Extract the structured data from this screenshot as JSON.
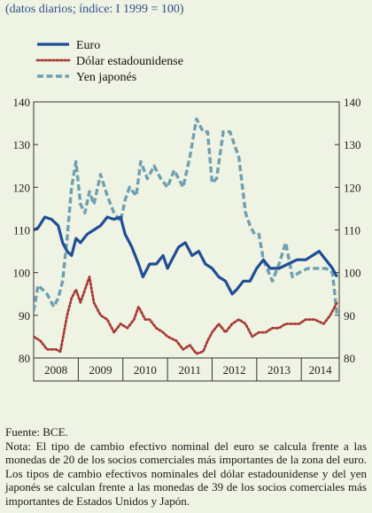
{
  "subtitle": "(datos diarios; índice: I 1999 = 100)",
  "footer": {
    "source": "Fuente: BCE.",
    "note": "Nota: El tipo de cambio efectivo nominal del euro se calcula frente a las monedas de 20 de los socios comerciales más importantes de la zona del euro. Los tipos de cambio efectivos nominales del dólar estadounidense y del yen japonés se calculan frente a las monedas de 39 de los socios comerciales más importantes de Estados Unidos y Japón."
  },
  "colors": {
    "background": "#eef3e3",
    "euro": "#1f4e96",
    "usd": "#a83a34",
    "yen": "#6f9fb0",
    "subtitle": "#2e4f8a"
  },
  "chart_data": {
    "type": "line",
    "title": "",
    "xlabel": "",
    "ylabel": "",
    "x_ticks": [
      "2008",
      "2009",
      "2010",
      "2011",
      "2012",
      "2013",
      "2014"
    ],
    "xlim": [
      2008.0,
      2014.85
    ],
    "ylim": [
      80,
      140
    ],
    "y_ticks_left": [
      80,
      90,
      100,
      110,
      120,
      130,
      140
    ],
    "y_ticks_right": [
      80,
      90,
      100,
      110,
      120,
      130,
      140
    ],
    "legend_position": "top-left",
    "series": [
      {
        "name": "Euro",
        "style": "solid",
        "x": [
          2008.0,
          2008.1,
          2008.25,
          2008.4,
          2008.55,
          2008.65,
          2008.75,
          2008.85,
          2008.95,
          2009.05,
          2009.2,
          2009.35,
          2009.5,
          2009.65,
          2009.8,
          2009.95,
          2010.05,
          2010.2,
          2010.35,
          2010.45,
          2010.6,
          2010.75,
          2010.9,
          2011.0,
          2011.1,
          2011.25,
          2011.4,
          2011.55,
          2011.7,
          2011.85,
          2012.0,
          2012.15,
          2012.3,
          2012.45,
          2012.55,
          2012.7,
          2012.85,
          2013.0,
          2013.15,
          2013.3,
          2013.5,
          2013.7,
          2013.9,
          2014.1,
          2014.25,
          2014.4,
          2014.55,
          2014.7,
          2014.8
        ],
        "values": [
          110,
          110.5,
          113,
          112.5,
          111,
          107,
          105,
          104,
          108,
          107,
          109,
          110,
          111,
          113,
          112.5,
          113,
          109,
          106,
          102,
          99,
          102,
          102,
          104,
          101,
          103,
          106,
          107,
          104,
          105,
          102,
          101,
          99,
          98,
          95,
          96,
          98,
          98,
          101,
          103,
          101,
          101,
          102,
          103,
          103,
          104,
          105,
          103,
          101,
          99
        ]
      },
      {
        "name": "Dólar estadounidense",
        "style": "dotted",
        "x": [
          2008.0,
          2008.15,
          2008.3,
          2008.5,
          2008.6,
          2008.75,
          2008.85,
          2008.95,
          2009.05,
          2009.15,
          2009.25,
          2009.35,
          2009.5,
          2009.65,
          2009.8,
          2009.95,
          2010.1,
          2010.25,
          2010.35,
          2010.5,
          2010.6,
          2010.75,
          2010.9,
          2011.0,
          2011.2,
          2011.35,
          2011.5,
          2011.65,
          2011.8,
          2011.9,
          2012.0,
          2012.15,
          2012.3,
          2012.45,
          2012.6,
          2012.75,
          2012.9,
          2013.05,
          2013.2,
          2013.35,
          2013.5,
          2013.65,
          2013.8,
          2013.95,
          2014.1,
          2014.3,
          2014.5,
          2014.65,
          2014.8
        ],
        "values": [
          85,
          84,
          82,
          82,
          81.5,
          90,
          94,
          96,
          93,
          96,
          99,
          93,
          90,
          89,
          86,
          88,
          87,
          89,
          92,
          89,
          89,
          87,
          86,
          85,
          84,
          82,
          83,
          81,
          81.5,
          84,
          86,
          88,
          86,
          88,
          89,
          88,
          85,
          86,
          86,
          87,
          87,
          88,
          88,
          88,
          89,
          89,
          88,
          90,
          93
        ]
      },
      {
        "name": "Yen japonés",
        "style": "dashed",
        "x": [
          2008.0,
          2008.1,
          2008.2,
          2008.3,
          2008.45,
          2008.55,
          2008.65,
          2008.75,
          2008.85,
          2008.95,
          2009.05,
          2009.15,
          2009.25,
          2009.35,
          2009.5,
          2009.65,
          2009.8,
          2009.95,
          2010.05,
          2010.15,
          2010.3,
          2010.4,
          2010.55,
          2010.7,
          2010.85,
          2011.0,
          2011.15,
          2011.25,
          2011.35,
          2011.5,
          2011.65,
          2011.8,
          2011.9,
          2012.0,
          2012.1,
          2012.25,
          2012.4,
          2012.5,
          2012.6,
          2012.75,
          2012.85,
          2012.95,
          2013.05,
          2013.15,
          2013.35,
          2013.5,
          2013.65,
          2013.8,
          2013.95,
          2014.15,
          2014.35,
          2014.55,
          2014.7,
          2014.8
        ],
        "values": [
          91,
          97,
          96,
          95,
          92,
          94,
          98,
          108,
          120,
          126,
          116,
          114,
          119,
          116,
          123,
          118,
          114,
          112,
          117,
          120,
          118,
          126,
          122,
          125,
          122,
          120,
          124,
          122,
          120,
          127,
          136,
          133,
          133,
          121,
          122,
          133,
          133,
          130,
          127,
          114,
          111,
          109,
          109,
          103,
          98,
          102,
          107,
          99,
          100,
          101,
          101,
          101,
          100,
          90
        ]
      }
    ]
  }
}
